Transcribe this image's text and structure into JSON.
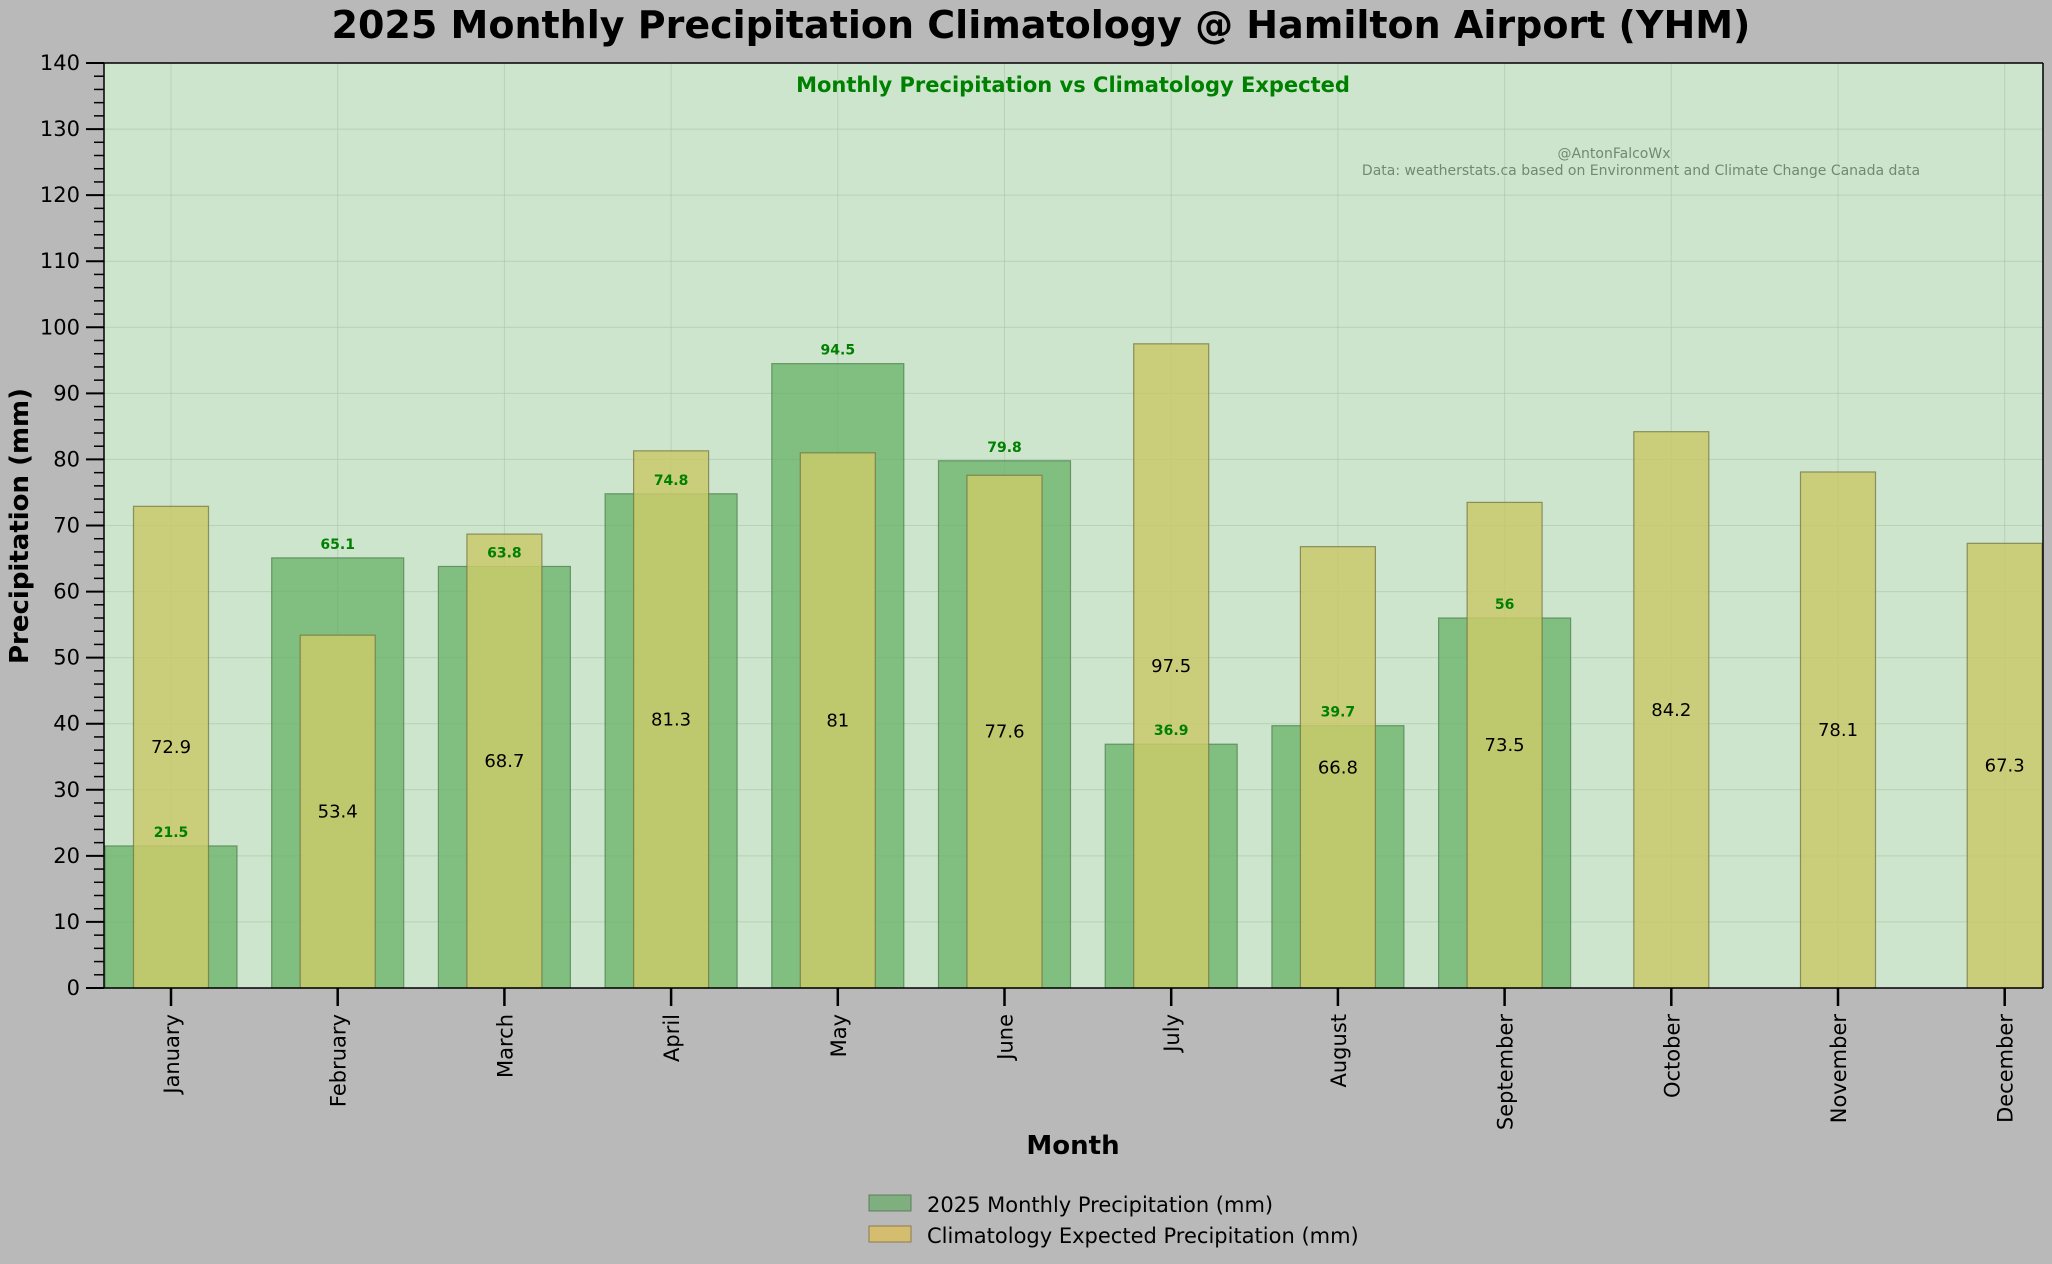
{
  "chart_data": {
    "type": "bar",
    "title": "2025 Monthly Precipitation Climatology @ Hamilton Airport (YHM)",
    "subtitle": "Monthly Precipitation vs Climatology Expected",
    "credit_handle": "@AntonFalcoWx",
    "credit_source": "Data: weatherstats.ca based on Environment and Climate Change Canada data",
    "xlabel": "Month",
    "ylabel": "Precipitation (mm)",
    "ylim": [
      0,
      140
    ],
    "y_ticks": [
      0,
      10,
      20,
      30,
      40,
      50,
      60,
      70,
      80,
      90,
      100,
      110,
      120,
      130,
      140
    ],
    "categories": [
      "January",
      "February",
      "March",
      "April",
      "May",
      "June",
      "July",
      "August",
      "September",
      "October",
      "November",
      "December"
    ],
    "series": [
      {
        "name": "2025 Monthly Precipitation (mm)",
        "color": "#66b266",
        "values": [
          21.5,
          65.1,
          63.8,
          74.8,
          94.5,
          79.8,
          36.9,
          39.7,
          56,
          null,
          null,
          null
        ]
      },
      {
        "name": "Climatology Expected Precipitation (mm)",
        "color": "#c9c96a",
        "values": [
          72.9,
          53.4,
          68.7,
          81.3,
          81,
          77.6,
          97.5,
          66.8,
          73.5,
          84.2,
          78.1,
          67.3
        ]
      }
    ],
    "grid": true,
    "legend_position": "bottom-center",
    "colors": {
      "page_background": "#b9b9b9",
      "plot_background": "#cde5cd",
      "actual_bar": "#66b266",
      "climatology_bar": "#c9c96a",
      "actual_label": "#008000",
      "subtitle": "#008000",
      "legend_actual_swatch": "#7fae7f",
      "legend_climatology_swatch": "#d4bd6e"
    }
  }
}
